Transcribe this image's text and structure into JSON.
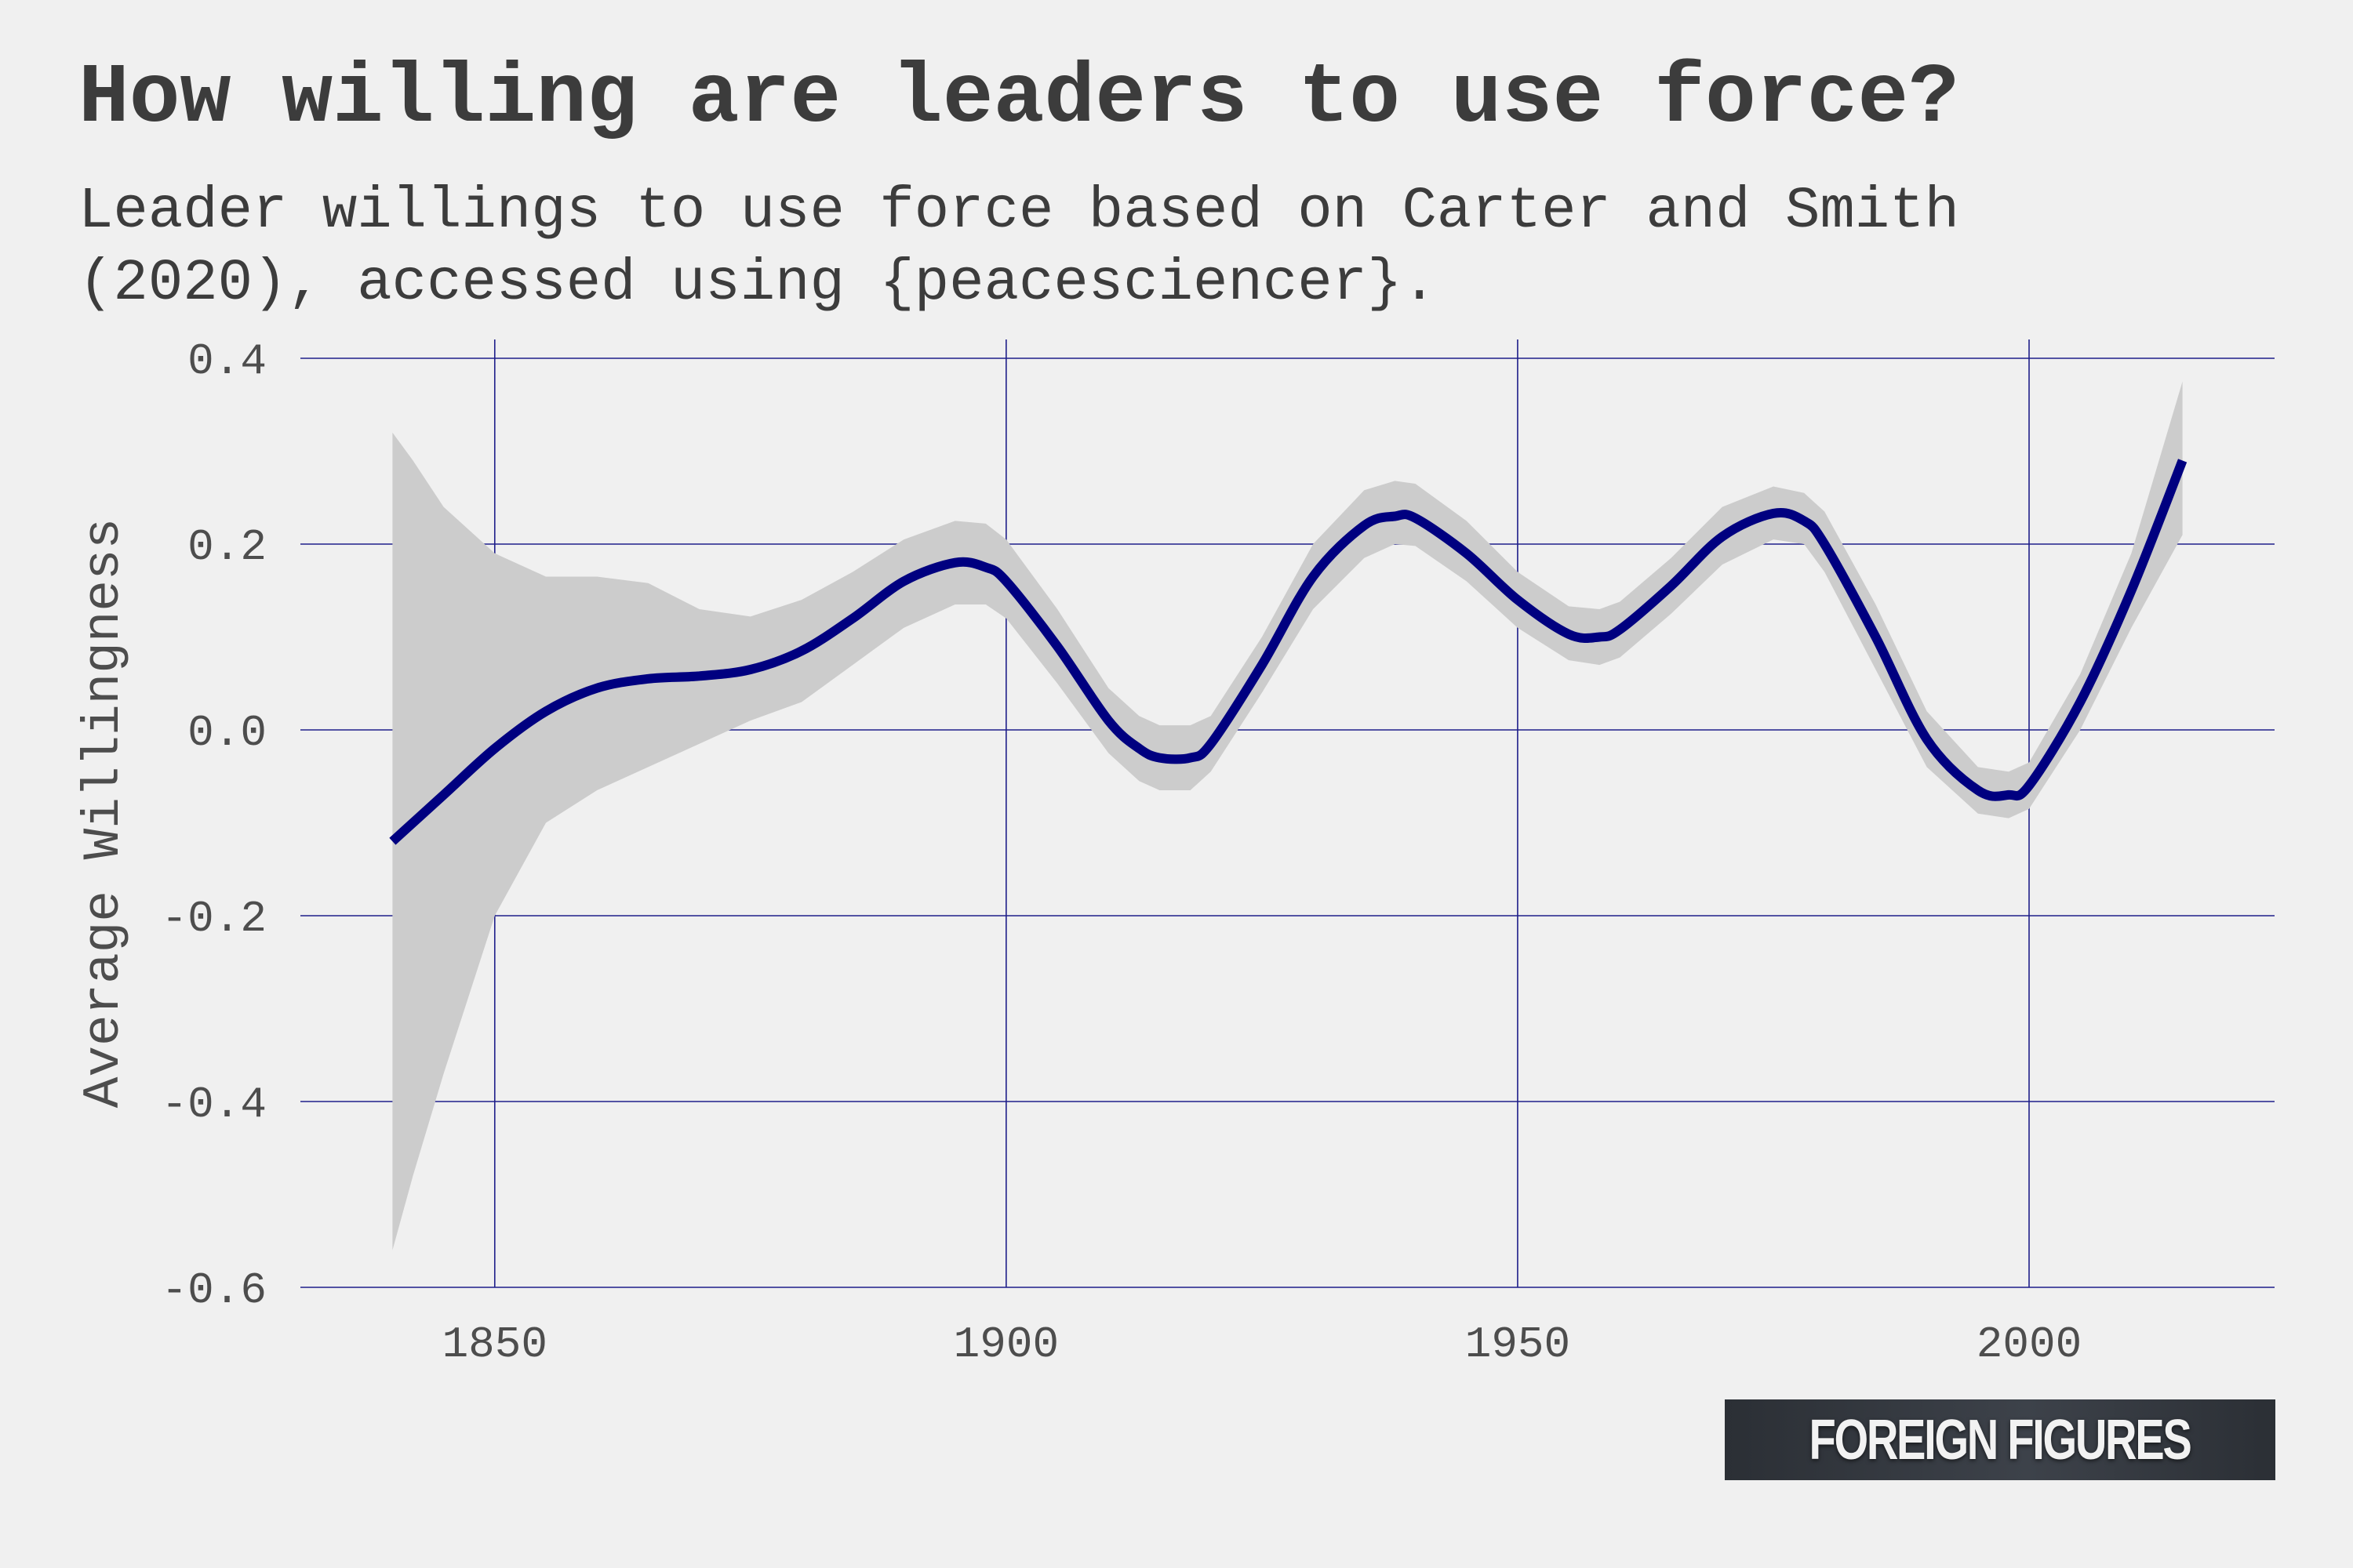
{
  "chart_data": {
    "type": "line",
    "title": "How willing are leaders to use force?",
    "subtitle": "Leader willings to use force based on Carter and Smith\n(2020), accessed using {peacesciencer}.",
    "xlabel": "",
    "ylabel": "Average Willingness",
    "xlim": [
      1831,
      2024
    ],
    "ylim": [
      -0.6,
      0.4
    ],
    "x_ticks": [
      1850,
      1900,
      1950,
      2000
    ],
    "y_ticks": [
      -0.6,
      -0.4,
      -0.2,
      0.0,
      0.2,
      0.4
    ],
    "y_tick_labels": [
      "-0.6",
      "-0.4",
      "-0.2",
      "0.0",
      "0.2",
      "0.4"
    ],
    "grid": true,
    "series": [
      {
        "x": [
          1840,
          1845,
          1850,
          1855,
          1860,
          1865,
          1870,
          1875,
          1880,
          1885,
          1890,
          1895,
          1898,
          1900,
          1905,
          1910,
          1913,
          1915,
          1918,
          1920,
          1925,
          1930,
          1935,
          1938,
          1940,
          1945,
          1950,
          1955,
          1958,
          1960,
          1965,
          1970,
          1975,
          1978,
          1980,
          1985,
          1990,
          1995,
          1998,
          2000,
          2005,
          2010,
          2015
        ],
        "y": [
          -0.12,
          -0.07,
          -0.02,
          0.02,
          0.045,
          0.055,
          0.058,
          0.065,
          0.085,
          0.12,
          0.16,
          0.18,
          0.175,
          0.16,
          0.09,
          0.01,
          -0.02,
          -0.03,
          -0.03,
          -0.015,
          0.07,
          0.165,
          0.22,
          0.23,
          0.228,
          0.19,
          0.14,
          0.103,
          0.1,
          0.108,
          0.155,
          0.208,
          0.233,
          0.225,
          0.2,
          0.1,
          -0.01,
          -0.065,
          -0.07,
          -0.06,
          0.03,
          0.15,
          0.29
        ]
      }
    ],
    "confidence_band": {
      "x": [
        1840,
        1842,
        1845,
        1850,
        1855,
        1860,
        1865,
        1870,
        1875,
        1880,
        1885,
        1890,
        1895,
        1898,
        1900,
        1905,
        1910,
        1913,
        1915,
        1918,
        1920,
        1925,
        1930,
        1935,
        1938,
        1940,
        1945,
        1950,
        1955,
        1958,
        1960,
        1965,
        1970,
        1975,
        1978,
        1980,
        1985,
        1990,
        1995,
        1998,
        2000,
        2005,
        2010,
        2015
      ],
      "upper": [
        0.32,
        0.29,
        0.24,
        0.19,
        0.165,
        0.165,
        0.158,
        0.13,
        0.122,
        0.14,
        0.17,
        0.205,
        0.225,
        0.222,
        0.205,
        0.13,
        0.045,
        0.015,
        0.005,
        0.005,
        0.015,
        0.1,
        0.2,
        0.258,
        0.268,
        0.265,
        0.225,
        0.17,
        0.133,
        0.13,
        0.138,
        0.185,
        0.24,
        0.262,
        0.255,
        0.235,
        0.135,
        0.02,
        -0.04,
        -0.045,
        -0.035,
        0.06,
        0.19,
        0.375
      ],
      "lower": [
        -0.56,
        -0.48,
        -0.37,
        -0.2,
        -0.1,
        -0.065,
        -0.04,
        -0.015,
        0.01,
        0.03,
        0.07,
        0.11,
        0.135,
        0.135,
        0.12,
        0.05,
        -0.025,
        -0.055,
        -0.065,
        -0.065,
        -0.045,
        0.04,
        0.13,
        0.185,
        0.2,
        0.198,
        0.16,
        0.11,
        0.075,
        0.07,
        0.078,
        0.125,
        0.178,
        0.205,
        0.2,
        0.17,
        0.065,
        -0.04,
        -0.09,
        -0.095,
        -0.085,
        0.0,
        0.11,
        0.21
      ]
    },
    "colors": {
      "line": "#000080",
      "band": "#cccccc",
      "grid": "#1f1f8a",
      "background": "#f0f0f0"
    }
  },
  "brand": {
    "logo_text": "FOREIGN FIGURES"
  }
}
